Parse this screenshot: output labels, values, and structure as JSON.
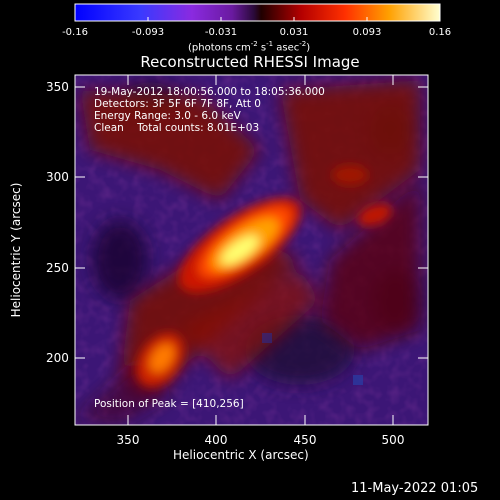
{
  "colorbar": {
    "ticks": [
      "-0.16",
      "-0.093",
      "-0.031",
      "0.031",
      "0.093",
      "0.16"
    ],
    "unit_prefix": "(photons cm",
    "unit_sup1": "-2",
    "unit_mid": " s",
    "unit_sup2": "-1",
    "unit_mid2": " asec",
    "unit_sup3": "-2",
    "unit_suffix": ")"
  },
  "title": "Reconstructed RHESSI Image",
  "info": {
    "line1": "19-May-2012 18:00:56.000 to 18:05:36.000",
    "line2": "Detectors: 3F 5F 6F 7F 8F, Att 0",
    "line3": "Energy Range: 3.0 - 6.0 keV",
    "line4": "Clean    Total counts: 8.01E+03"
  },
  "peak_text": "Position of Peak = [410,256]",
  "axes": {
    "xlabel": "Heliocentric X (arcsec)",
    "ylabel": "Heliocentric Y (arcsec)",
    "xticks": [
      "350",
      "400",
      "450",
      "500"
    ],
    "yticks": [
      "350",
      "300",
      "250",
      "200"
    ]
  },
  "footer": "11-May-2022 01:05",
  "colors": {
    "background": "#000000",
    "low": "#4a1a8c",
    "high": "#ffffc0"
  }
}
